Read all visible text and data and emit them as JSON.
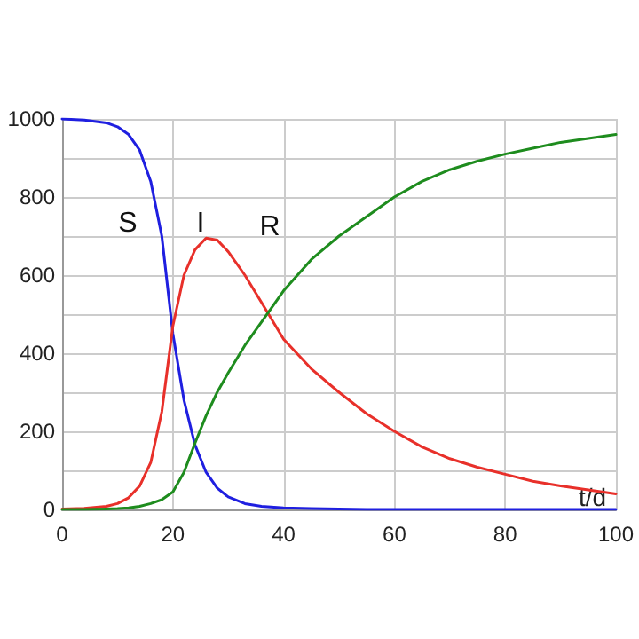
{
  "chart_data": {
    "type": "line",
    "x": [
      0,
      4,
      8,
      10,
      12,
      14,
      16,
      18,
      20,
      22,
      24,
      26,
      28,
      30,
      33,
      36,
      40,
      45,
      50,
      55,
      60,
      65,
      70,
      75,
      80,
      85,
      90,
      95,
      100
    ],
    "series": [
      {
        "color": "#1f1fe0",
        "values": [
          1000,
          997,
          990,
          980,
          960,
          920,
          840,
          700,
          450,
          280,
          165,
          95,
          55,
          32,
          15,
          8,
          4,
          2,
          1,
          0,
          0,
          0,
          0,
          0,
          0,
          0,
          0,
          0,
          0
        ]
      },
      {
        "color": "#e8302a",
        "values": [
          1,
          3,
          8,
          15,
          30,
          60,
          120,
          250,
          470,
          600,
          665,
          695,
          690,
          660,
          600,
          530,
          436,
          360,
          300,
          245,
          200,
          160,
          130,
          108,
          90,
          72,
          60,
          50,
          40
        ]
      },
      {
        "color": "#1e8c1e",
        "values": [
          0,
          0,
          1,
          2,
          4,
          8,
          15,
          25,
          45,
          95,
          170,
          240,
          300,
          350,
          420,
          480,
          560,
          640,
          700,
          750,
          800,
          840,
          870,
          892,
          910,
          925,
          940,
          950,
          960
        ]
      }
    ],
    "xlabel": "t/d",
    "annotations": [
      "S",
      "I",
      "R"
    ],
    "xlim": [
      0,
      100
    ],
    "xticks": [
      0,
      20,
      40,
      60,
      80,
      100
    ],
    "ylim": [
      0,
      1000
    ],
    "yticks": [
      0,
      {
        "value": 100,
        "label": null
      },
      200,
      {
        "value": 300,
        "label": null
      },
      400,
      {
        "value": 500,
        "label": null
      },
      600,
      {
        "value": 700,
        "label": null
      },
      800,
      {
        "value": 900,
        "label": null
      },
      1000
    ],
    "grid": true,
    "marker": "none",
    "line_style": "solid"
  }
}
